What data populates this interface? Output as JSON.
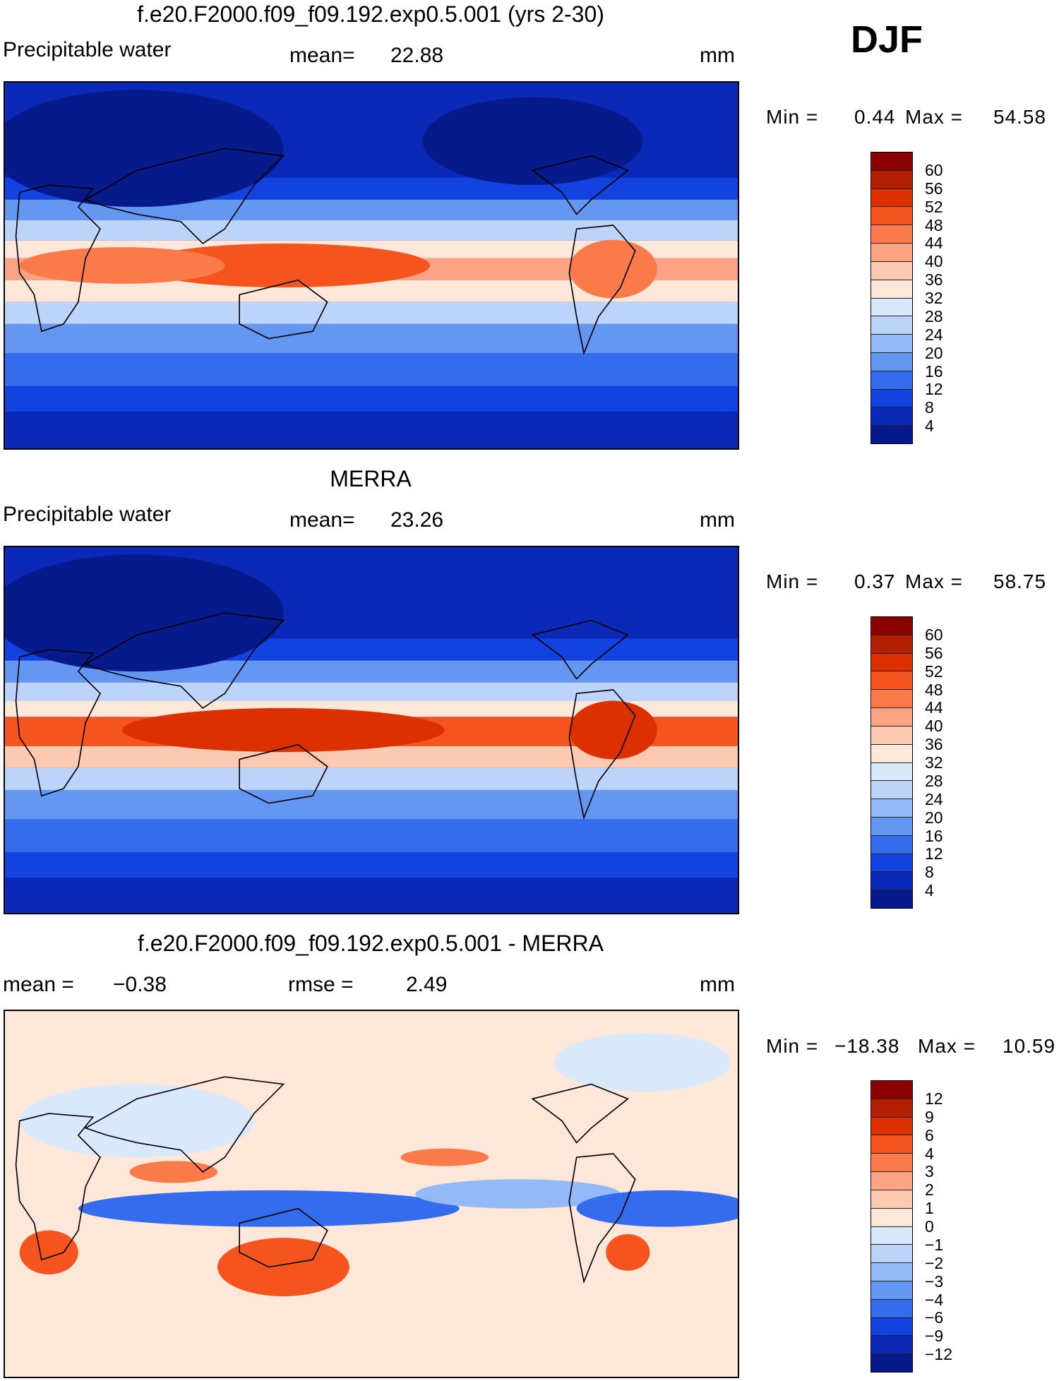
{
  "header": {
    "season": "DJF"
  },
  "palette_abs": [
    "#8b0000",
    "#b31e00",
    "#dc3000",
    "#f5541e",
    "#fa7a4a",
    "#fca383",
    "#fdc9b0",
    "#fde7d9",
    "#d9e8fb",
    "#bcd4fa",
    "#93b9f7",
    "#6497f2",
    "#346ced",
    "#1242e0",
    "#0a29b8",
    "#061a8c"
  ],
  "palette_diff": [
    "#8b0000",
    "#b31e00",
    "#dc3000",
    "#f5541e",
    "#fa7a4a",
    "#fca383",
    "#fdc9b0",
    "#fde7d9",
    "#d9e8fb",
    "#bcd4fa",
    "#93b9f7",
    "#6497f2",
    "#346ced",
    "#1242e0",
    "#0a29b8",
    "#061a8c"
  ],
  "panels": [
    {
      "title": "f.e20.F2000.f09_f09.192.exp0.5.001 (yrs 2-30)",
      "left_label": "Precipitable  water",
      "mid_label": "mean=",
      "mid_value": "22.88",
      "units": "mm",
      "min_label": "Min  =",
      "min_value": "0.44",
      "max_label": "Max  =",
      "max_value": "54.58",
      "ticks": [
        "60",
        "56",
        "52",
        "48",
        "44",
        "40",
        "36",
        "32",
        "28",
        "24",
        "20",
        "16",
        "12",
        "8",
        "4"
      ]
    },
    {
      "title": "MERRA",
      "left_label": "Precipitable  water",
      "mid_label": "mean=",
      "mid_value": "23.26",
      "units": "mm",
      "min_label": "Min  =",
      "min_value": "0.37",
      "max_label": "Max  =",
      "max_value": "58.75",
      "ticks": [
        "60",
        "56",
        "52",
        "48",
        "44",
        "40",
        "36",
        "32",
        "28",
        "24",
        "20",
        "16",
        "12",
        "8",
        "4"
      ]
    },
    {
      "title": "f.e20.F2000.f09_f09.192.exp0.5.001 - MERRA",
      "left_label": "mean  =",
      "left_value": "−0.38",
      "mid_label": "rmse  =",
      "mid_value": "2.49",
      "units": "mm",
      "min_label": "Min  =",
      "min_value": "−18.38",
      "max_label": "Max  =",
      "max_value": "10.59",
      "ticks": [
        "12",
        "9",
        "6",
        "4",
        "3",
        "2",
        "1",
        "0",
        "−1",
        "−2",
        "−3",
        "−4",
        "−6",
        "−9",
        "−12"
      ]
    }
  ]
}
